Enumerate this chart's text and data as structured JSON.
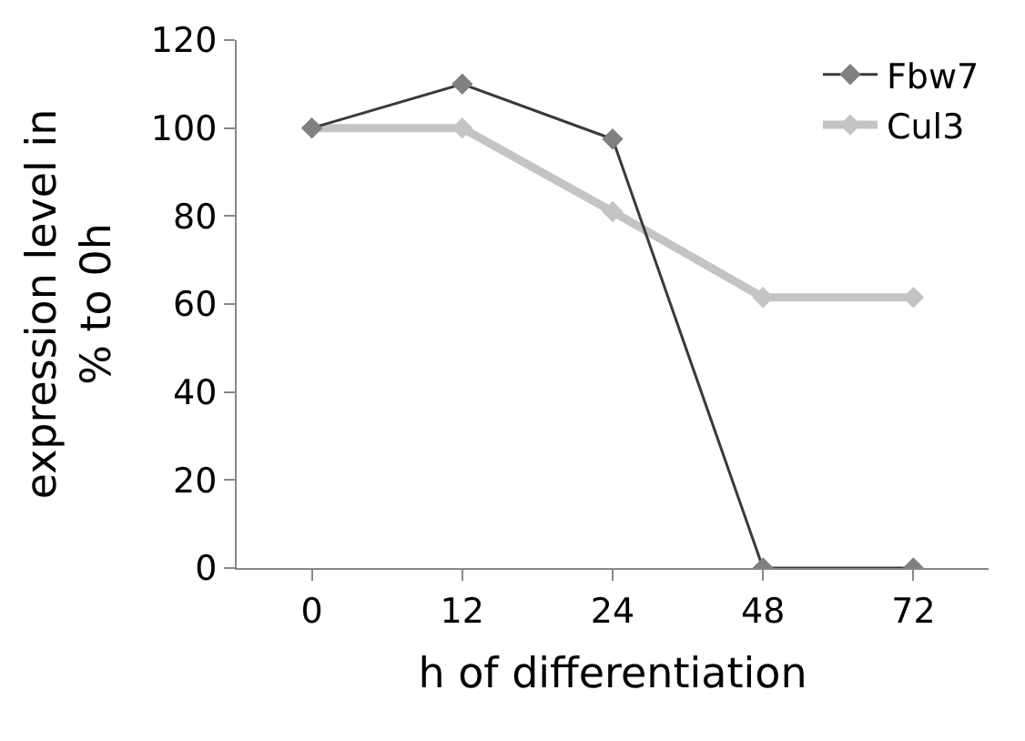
{
  "chart_data": {
    "type": "line",
    "xlabel": "h of differentiation",
    "ylabel": "expression level in\n% to 0h",
    "categories": [
      "0",
      "12",
      "24",
      "48",
      "72"
    ],
    "series": [
      {
        "name": "Fbw7",
        "color": "#3a3a3a",
        "values": [
          100,
          110,
          97.5,
          0,
          0
        ]
      },
      {
        "name": "Cul3",
        "color": "#c4c4c4",
        "values": [
          100,
          100,
          81,
          61.5,
          61.5
        ]
      }
    ],
    "ylim": [
      0,
      120
    ],
    "yticks": [
      0,
      20,
      40,
      60,
      80,
      100,
      120
    ],
    "legend": "top right",
    "marker": "diamond",
    "line_style": "solid"
  }
}
